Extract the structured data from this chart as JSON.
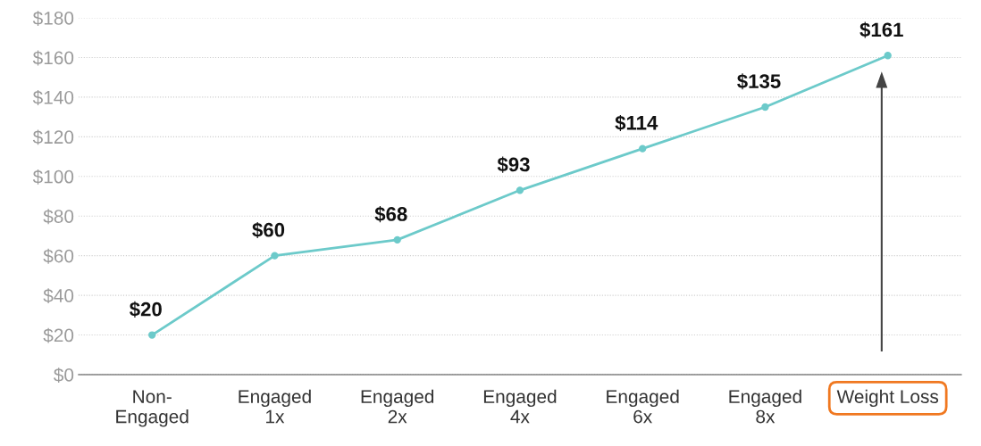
{
  "chart_data": {
    "type": "line",
    "categories": [
      "Non-\nEngaged",
      "Engaged\n1x",
      "Engaged\n2x",
      "Engaged\n4x",
      "Engaged\n6x",
      "Engaged\n8x",
      "Weight Loss"
    ],
    "series": [
      {
        "color": "#6ccaca",
        "values": [
          20,
          60,
          68,
          93,
          114,
          135,
          161
        ],
        "value_labels": [
          "$20",
          "$60",
          "$68",
          "$93",
          "$114",
          "$135",
          "$161"
        ]
      }
    ],
    "ylim": [
      0,
      180
    ],
    "yticks": [
      {
        "value": 0,
        "label": "$0"
      },
      {
        "value": 20,
        "label": "$20"
      },
      {
        "value": 40,
        "label": "$40"
      },
      {
        "value": 60,
        "label": "$60"
      },
      {
        "value": 80,
        "label": "$80"
      },
      {
        "value": 100,
        "label": "$100"
      },
      {
        "value": 120,
        "label": "$120"
      },
      {
        "value": 140,
        "label": "$140"
      },
      {
        "value": 160,
        "label": "$160"
      },
      {
        "value": 180,
        "label": "$180"
      }
    ],
    "grid": "y",
    "marker": "circle",
    "line_style": "solid"
  }
}
